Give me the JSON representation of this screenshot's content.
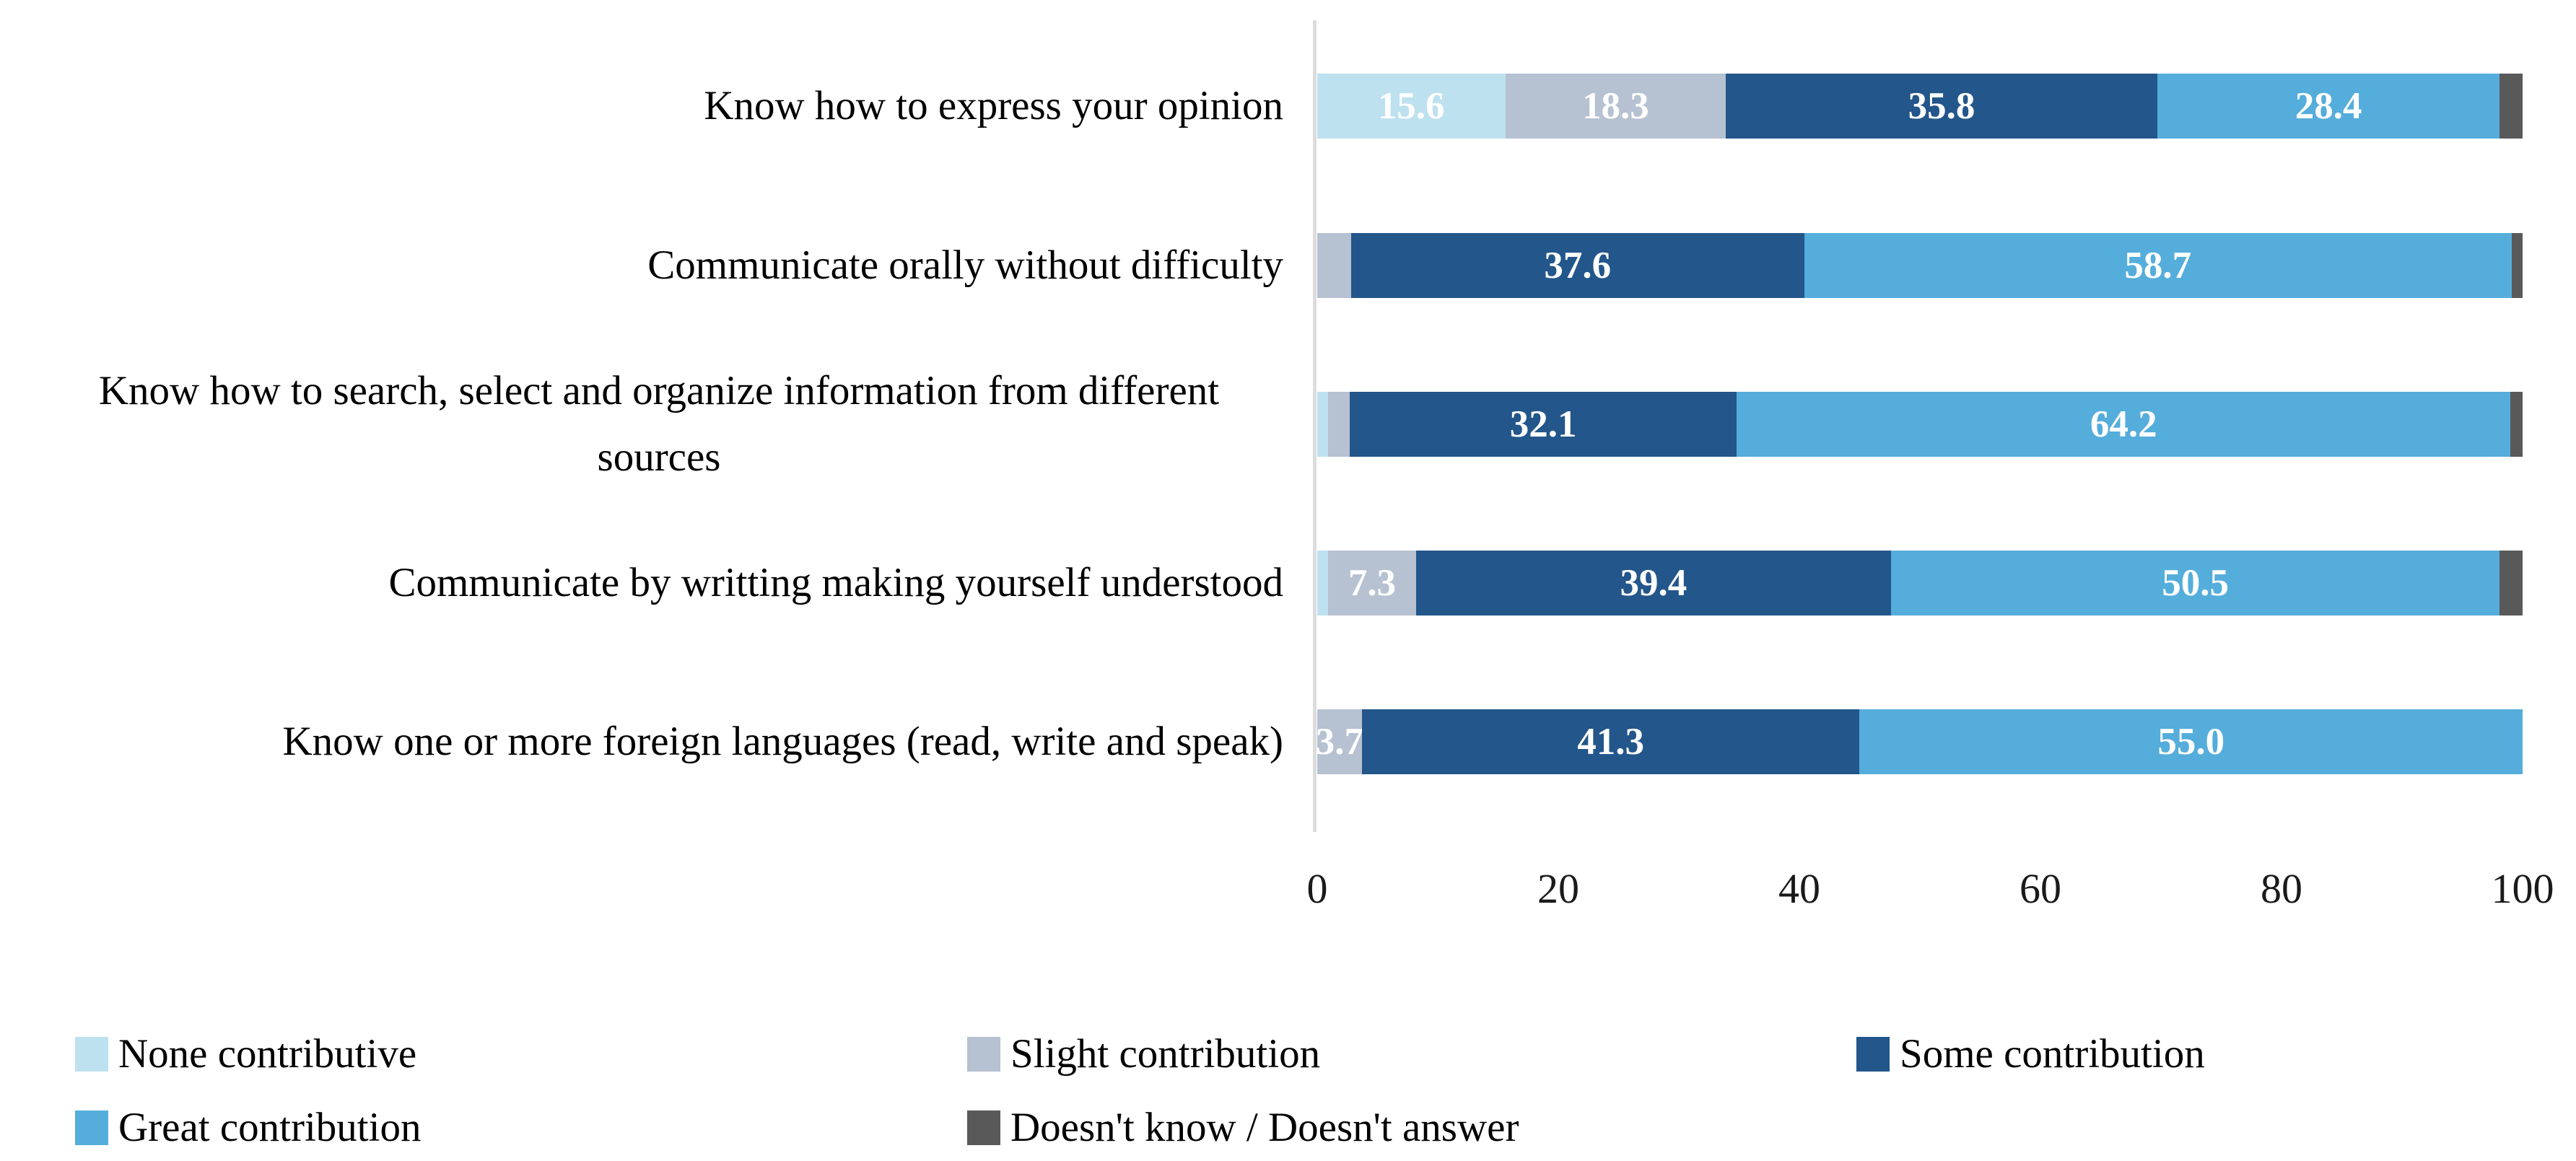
{
  "chart_data": {
    "type": "bar",
    "orientation": "horizontal",
    "stacked": true,
    "title": "",
    "xlabel": "",
    "ylabel": "",
    "xlim": [
      0,
      100
    ],
    "x_ticks": [
      "0",
      "20",
      "40",
      "60",
      "80",
      "100"
    ],
    "grid": false,
    "legend_position": "bottom",
    "axis_line_color": "#DCDCDC",
    "value_label_color": "#FFFFFF",
    "categories": [
      "Know how to express your opinion",
      "Communicate orally without difficulty",
      "Know how to search, select and organize information from different sources",
      "Communicate by writting making yourself understood",
      "Know one or more foreign languages (read, write and speak)"
    ],
    "series": [
      {
        "name": "None contributive",
        "color": "#BEE1F0",
        "values": [
          15.6,
          0,
          0.9,
          0.9,
          0
        ],
        "data_labels": [
          "15.6",
          "",
          "",
          "",
          ""
        ]
      },
      {
        "name": "Slight contribution",
        "color": "#B6C1D1",
        "values": [
          18.3,
          2.8,
          1.8,
          7.3,
          3.7
        ],
        "data_labels": [
          "18.3",
          "",
          "",
          "7.3",
          "3.7"
        ]
      },
      {
        "name": "Some contribution",
        "color": "#23568A",
        "values": [
          35.8,
          37.6,
          32.1,
          39.4,
          41.3
        ],
        "data_labels": [
          "35.8",
          "37.6",
          "32.1",
          "39.4",
          "41.3"
        ]
      },
      {
        "name": "Great contribution",
        "color": "#55ADDB",
        "values": [
          28.4,
          58.7,
          64.2,
          50.5,
          55.0
        ],
        "data_labels": [
          "28.4",
          "58.7",
          "64.2",
          "50.5",
          "55.0"
        ]
      },
      {
        "name": "Doesn't know / Doesn't answer",
        "color": "#595959",
        "values": [
          1.9,
          0.9,
          1.0,
          1.9,
          0
        ],
        "data_labels": [
          "",
          "",
          "",
          "",
          ""
        ]
      }
    ]
  },
  "layout_text": {
    "legend_row1": [
      "None contributive",
      "Slight contribution",
      "Some contribution"
    ],
    "legend_row2": [
      "Great contribution",
      "Doesn't know / Doesn't answer"
    ]
  }
}
